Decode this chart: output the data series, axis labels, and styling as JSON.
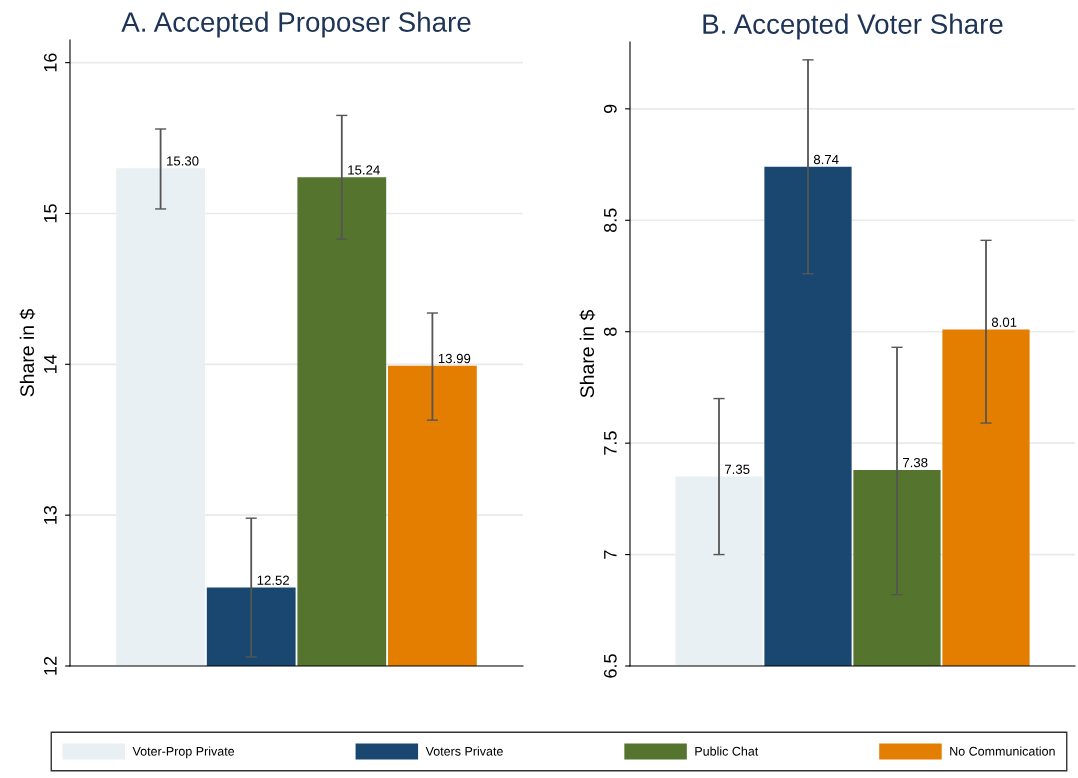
{
  "chart_data": [
    {
      "type": "bar",
      "title": "A. Accepted Proposer Share",
      "ylabel": "Share in $",
      "categories": [
        null
      ],
      "ylim": [
        12,
        16.15
      ],
      "yticks": [
        12,
        13,
        14,
        15,
        16
      ],
      "grid": "y",
      "legend": "bottom",
      "series": [
        {
          "name": "Voter-Prop Private",
          "color": "#e8f0f3",
          "values": [
            15.3
          ],
          "value_labels": [
            "15.30"
          ],
          "errors": [
            [
              15.03,
              15.56
            ]
          ]
        },
        {
          "name": "Voters Private",
          "color": "#1a476f",
          "values": [
            12.52
          ],
          "value_labels": [
            "12.52"
          ],
          "errors": [
            [
              12.06,
              12.98
            ]
          ]
        },
        {
          "name": "Public Chat",
          "color": "#55752f",
          "values": [
            15.24
          ],
          "value_labels": [
            "15.24"
          ],
          "errors": [
            [
              14.83,
              15.65
            ]
          ]
        },
        {
          "name": "No Communication",
          "color": "#e37e00",
          "values": [
            13.99
          ],
          "value_labels": [
            "13.99"
          ],
          "errors": [
            [
              13.63,
              14.34
            ]
          ]
        }
      ]
    },
    {
      "type": "bar",
      "title": "B. Accepted Voter Share",
      "ylabel": "Share in $",
      "categories": [
        null
      ],
      "ylim": [
        6.5,
        9.3
      ],
      "yticks": [
        6.5,
        7,
        7.5,
        8,
        8.5,
        9
      ],
      "grid": "y",
      "series": [
        {
          "color": "#e8f0f3",
          "values": [
            7.35
          ],
          "value_labels": [
            "7.35"
          ],
          "errors": [
            [
              7.0,
              7.7
            ]
          ]
        },
        {
          "color": "#1a476f",
          "values": [
            8.74
          ],
          "value_labels": [
            "8.74"
          ],
          "errors": [
            [
              8.26,
              9.22
            ]
          ]
        },
        {
          "color": "#55752f",
          "values": [
            7.38
          ],
          "value_labels": [
            "7.38"
          ],
          "errors": [
            [
              6.82,
              7.93
            ]
          ]
        },
        {
          "color": "#e37e00",
          "values": [
            8.01
          ],
          "value_labels": [
            "8.01"
          ],
          "errors": [
            [
              7.59,
              8.41
            ]
          ]
        }
      ]
    }
  ]
}
